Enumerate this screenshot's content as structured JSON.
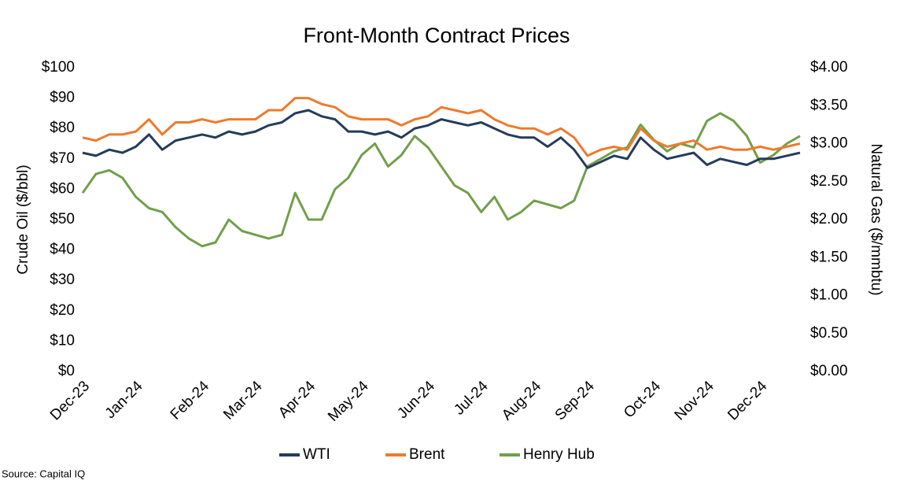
{
  "chart_data": {
    "type": "line",
    "title": "Front-Month Contract Prices",
    "y_label": "Crude Oil ($/bbl)",
    "y2_label": "Natural Gas ($/mmbtu)",
    "source": "Source: Capital IQ",
    "legend": "bottom",
    "categories": [
      "Dec-23",
      null,
      null,
      null,
      "Jan-24",
      null,
      null,
      null,
      null,
      "Feb-24",
      null,
      null,
      null,
      "Mar-24",
      null,
      null,
      null,
      "Apr-24",
      null,
      null,
      null,
      "May-24",
      null,
      null,
      null,
      null,
      "Jun-24",
      null,
      null,
      null,
      "Jul-24",
      null,
      null,
      null,
      "Aug-24",
      null,
      null,
      null,
      "Sep-24",
      null,
      null,
      null,
      null,
      "Oct-24",
      null,
      null,
      null,
      "Nov-24",
      null,
      null,
      null,
      "Dec-24",
      null,
      null,
      null
    ],
    "ylim": [
      0,
      100
    ],
    "yticks": [
      {
        "value": 0,
        "label": "$0"
      },
      {
        "value": 10,
        "label": "$10"
      },
      {
        "value": 20,
        "label": "$20"
      },
      {
        "value": 30,
        "label": "$30"
      },
      {
        "value": 40,
        "label": "$40"
      },
      {
        "value": 50,
        "label": "$50"
      },
      {
        "value": 60,
        "label": "$60"
      },
      {
        "value": 70,
        "label": "$70"
      },
      {
        "value": 80,
        "label": "$80"
      },
      {
        "value": 90,
        "label": "$90"
      },
      {
        "value": 100,
        "label": "$100"
      }
    ],
    "y2lim": [
      0,
      4
    ],
    "y2ticks": [
      {
        "value": 0,
        "label": "$0.00"
      },
      {
        "value": 0.5,
        "label": "$0.50"
      },
      {
        "value": 1,
        "label": "$1.00"
      },
      {
        "value": 1.5,
        "label": "$1.50"
      },
      {
        "value": 2,
        "label": "$2.00"
      },
      {
        "value": 2.5,
        "label": "$2.50"
      },
      {
        "value": 3,
        "label": "$3.00"
      },
      {
        "value": 3.5,
        "label": "$3.50"
      },
      {
        "value": 4,
        "label": "$4.00"
      }
    ],
    "series": [
      {
        "name": "WTI",
        "color": "#243c5a",
        "values": [
          72,
          71,
          73,
          72,
          74,
          78,
          73,
          76,
          77,
          78,
          77,
          79,
          78,
          79,
          81,
          82,
          85,
          86,
          84,
          83,
          79,
          79,
          78,
          79,
          77,
          80,
          81,
          83,
          82,
          81,
          82,
          80,
          78,
          77,
          77,
          74,
          77,
          73,
          67,
          69,
          71,
          70,
          77,
          73,
          70,
          71,
          72,
          68,
          70,
          69,
          68,
          70,
          70,
          71,
          72
        ]
      },
      {
        "name": "Brent",
        "color": "#ef7a2c",
        "values": [
          77,
          76,
          78,
          78,
          79,
          83,
          78,
          82,
          82,
          83,
          82,
          83,
          83,
          83,
          86,
          86,
          90,
          90,
          88,
          87,
          84,
          83,
          83,
          83,
          81,
          83,
          84,
          87,
          86,
          85,
          86,
          83,
          81,
          80,
          80,
          78,
          80,
          77,
          71,
          73,
          74,
          73,
          80,
          76,
          74,
          75,
          76,
          73,
          74,
          73,
          73,
          74,
          73,
          74,
          75
        ]
      },
      {
        "name": "Henry Hub",
        "color": "#70a04a",
        "axis": "y2",
        "values": [
          2.35,
          2.6,
          2.65,
          2.55,
          2.3,
          2.15,
          2.1,
          1.9,
          1.75,
          1.65,
          1.7,
          2.0,
          1.85,
          1.8,
          1.75,
          1.8,
          2.35,
          2.0,
          2.0,
          2.4,
          2.55,
          2.85,
          3.0,
          2.7,
          2.85,
          3.1,
          2.95,
          2.7,
          2.45,
          2.35,
          2.1,
          2.3,
          2.0,
          2.1,
          2.25,
          2.2,
          2.15,
          2.25,
          2.7,
          2.8,
          2.9,
          2.95,
          3.25,
          3.05,
          2.9,
          3.0,
          2.95,
          3.3,
          3.4,
          3.3,
          3.1,
          2.75,
          2.85,
          3.0,
          3.1
        ]
      }
    ]
  }
}
